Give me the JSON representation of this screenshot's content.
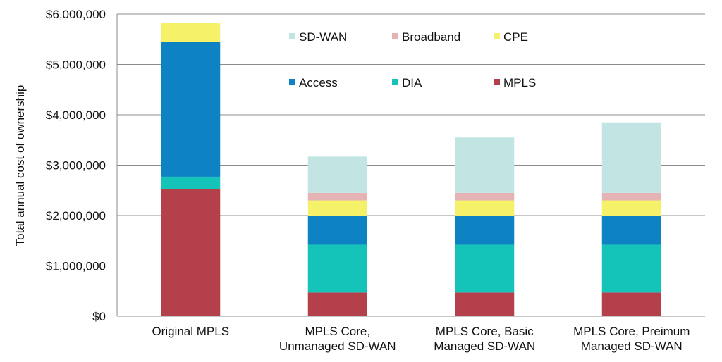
{
  "chart_data": {
    "type": "bar",
    "stacked": true,
    "categories": [
      [
        "Original MPLS"
      ],
      [
        "MPLS Core,",
        "Unmanaged SD-WAN"
      ],
      [
        "MPLS Core, Basic",
        "Managed SD-WAN"
      ],
      [
        "MPLS Core, Preimum",
        "Managed SD-WAN"
      ]
    ],
    "series": [
      {
        "name": "MPLS",
        "color": "#b3404a",
        "values": [
          2530000,
          470000,
          470000,
          470000
        ]
      },
      {
        "name": "DIA",
        "color": "#14c4b8",
        "values": [
          240000,
          950000,
          950000,
          950000
        ]
      },
      {
        "name": "Access",
        "color": "#0e83c4",
        "values": [
          2680000,
          570000,
          570000,
          570000
        ]
      },
      {
        "name": "CPE",
        "color": "#f5f26a",
        "values": [
          380000,
          310000,
          310000,
          310000
        ]
      },
      {
        "name": "Broadband",
        "color": "#e5b3b3",
        "values": [
          0,
          150000,
          150000,
          150000
        ]
      },
      {
        "name": "SD-WAN",
        "color": "#c2e5e4",
        "values": [
          0,
          720000,
          1100000,
          1400000
        ]
      }
    ],
    "legend_order": [
      "SD-WAN",
      "Broadband",
      "CPE",
      "Access",
      "DIA",
      "MPLS"
    ],
    "legend_position": "top-center",
    "ylabel": "Total annual cost of ownership",
    "xlabel": "",
    "ylim": [
      0,
      6000000
    ],
    "y_ticks": [
      0,
      1000000,
      2000000,
      3000000,
      4000000,
      5000000,
      6000000
    ],
    "y_tick_labels": [
      "$0",
      "$1,000,000",
      "$2,000,000",
      "$3,000,000",
      "$4,000,000",
      "$5,000,000",
      "$6,000,000"
    ],
    "grid": true
  }
}
